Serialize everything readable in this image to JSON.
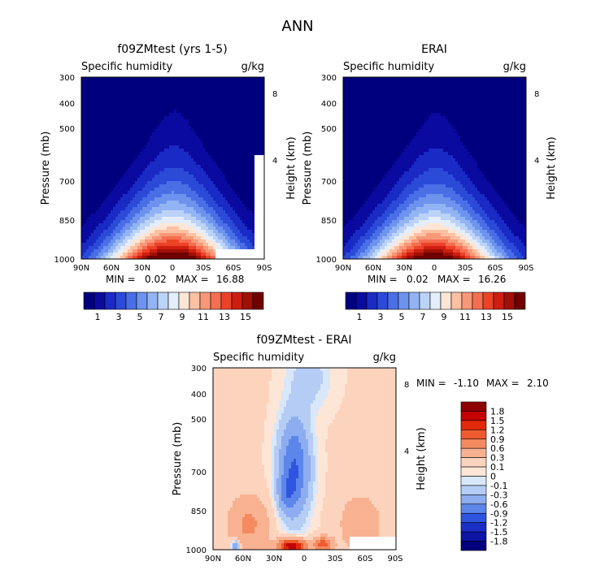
{
  "page_title": "ANN",
  "chart_data": [
    {
      "type": "heatmap",
      "id": "model",
      "title": "f09ZMtest (yrs 1-5)",
      "subtitle_left": "Specific humidity",
      "units": "g/kg",
      "ylabel": "Pressure (mb)",
      "ylabel_right": "Height (km)",
      "xticks": [
        "90N",
        "60N",
        "30N",
        "0",
        "30S",
        "60S",
        "90S"
      ],
      "yticks": [
        1000,
        850,
        700,
        500,
        400,
        300
      ],
      "yticks_right": [
        "4",
        "8"
      ],
      "stats": {
        "min_label": "MIN =",
        "min": "0.02",
        "max_label": "MAX =",
        "max": "16.88"
      },
      "colorbar_labels": [
        "1",
        "3",
        "5",
        "7",
        "9",
        "11",
        "13",
        "15"
      ],
      "peak": 16.88
    },
    {
      "type": "heatmap",
      "id": "obs",
      "title": "ERAI",
      "subtitle_left": "Specific humidity",
      "units": "g/kg",
      "ylabel": "Pressure (mb)",
      "ylabel_right": "Height (km)",
      "xticks": [
        "90N",
        "60N",
        "30N",
        "0",
        "30S",
        "60S",
        "90S"
      ],
      "yticks": [
        1000,
        850,
        700,
        500,
        400,
        300
      ],
      "yticks_right": [
        "8",
        "4"
      ],
      "stats": {
        "min_label": "MIN =",
        "min": "0.02",
        "max_label": "MAX =",
        "max": "16.26"
      },
      "colorbar_labels": [
        "1",
        "3",
        "5",
        "7",
        "9",
        "11",
        "13",
        "15"
      ],
      "peak": 16.26
    },
    {
      "type": "heatmap",
      "id": "diff",
      "title": "f09ZMtest - ERAI",
      "subtitle_left": "Specific humidity",
      "units": "g/kg",
      "ylabel": "Pressure (mb)",
      "ylabel_right": "Height (km)",
      "xticks": [
        "90N",
        "60N",
        "30N",
        "0",
        "30S",
        "60S",
        "90S"
      ],
      "yticks": [
        1000,
        850,
        700,
        500,
        400,
        300
      ],
      "yticks_right": [
        "8",
        "4"
      ],
      "stats": {
        "min_label": "MIN =",
        "min": "-1.10",
        "max_label": "MAX =",
        "max": "2.10"
      },
      "colorbar_labels": [
        "1.8",
        "1.5",
        "1.2",
        "0.9",
        "0.6",
        "0.3",
        "0.1",
        "0",
        "-0.1",
        "-0.3",
        "-0.6",
        "-0.9",
        "-1.2",
        "-1.5",
        "-1.8"
      ]
    }
  ],
  "colors": {
    "abs_scale": [
      "#00007e",
      "#0a0aa0",
      "#1a2ac4",
      "#2c4ad8",
      "#4a6ee6",
      "#6d93ee",
      "#93b4f4",
      "#bcd3f8",
      "#e4eefb",
      "#fde6d6",
      "#fcc0a2",
      "#f89878",
      "#f46e50",
      "#ec4228",
      "#ce1e10",
      "#a01006",
      "#700000"
    ],
    "diff_scale": [
      "#8e0000",
      "#c40000",
      "#e02a0a",
      "#ef5a30",
      "#f48a60",
      "#f8b291",
      "#fcd3bd",
      "#fde6d6",
      "#d9e7fa",
      "#b5cdf5",
      "#8dadf0",
      "#5d86ea",
      "#2f55e0",
      "#1a2ec6",
      "#0c15a4",
      "#02007e"
    ]
  }
}
